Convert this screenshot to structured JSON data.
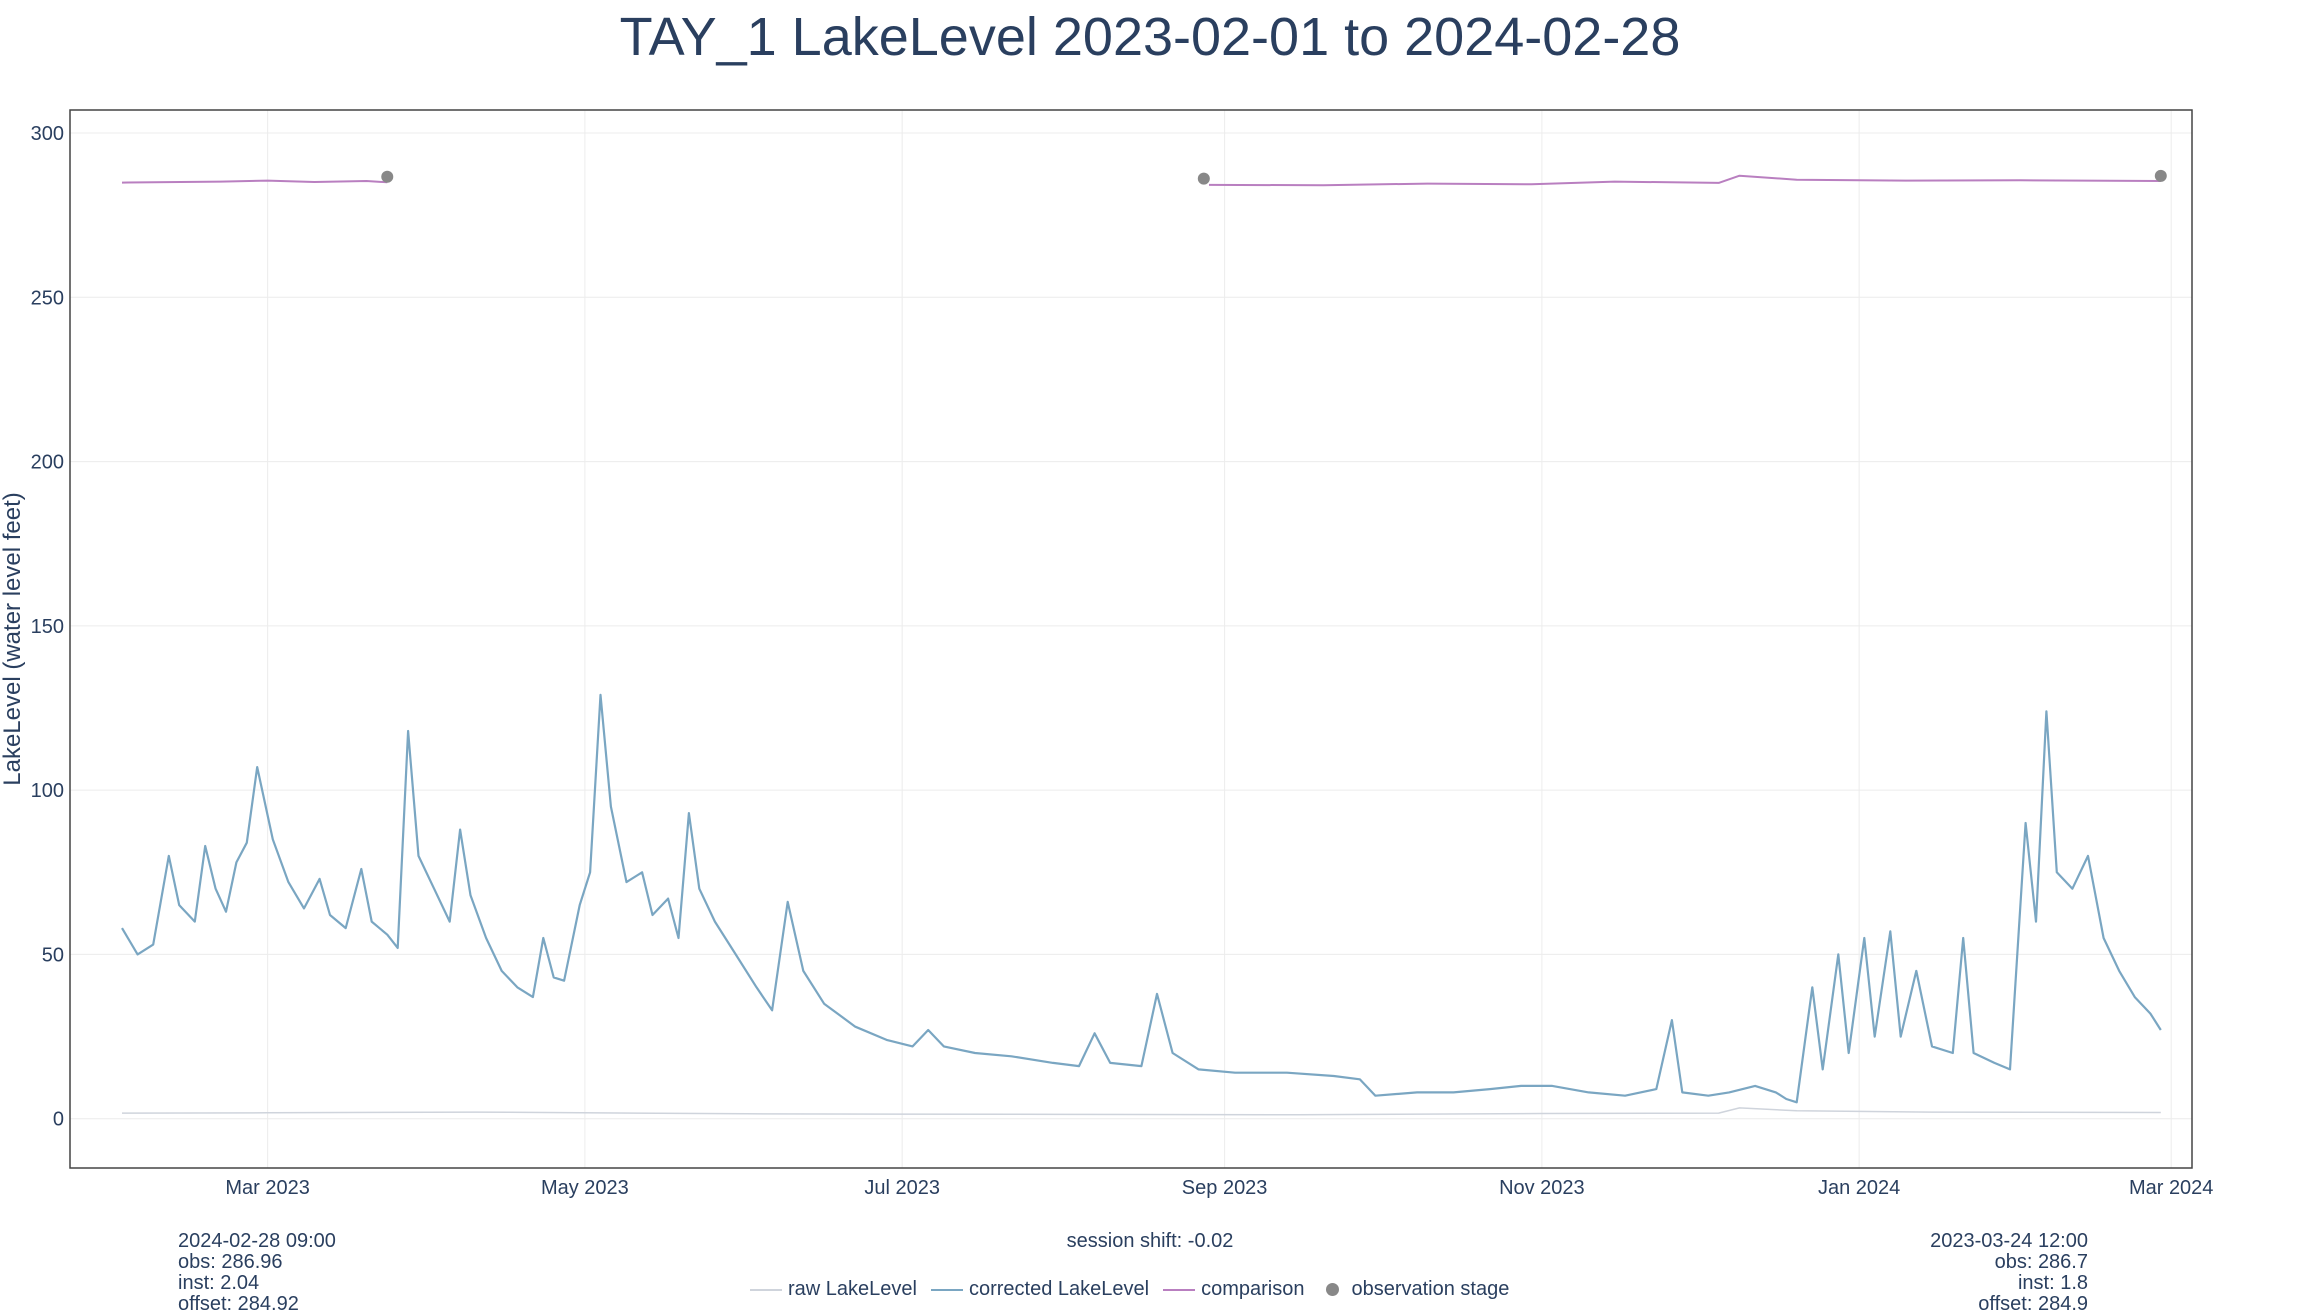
{
  "chart_data": {
    "type": "line",
    "title": "TAY_1 LakeLevel 2023-02-01 to 2024-02-28",
    "xlabel": "",
    "ylabel": "LakeLevel (water level feet)",
    "x_range": [
      "2023-01-22",
      "2024-03-05"
    ],
    "ylim": [
      -15,
      307
    ],
    "y_ticks": [
      0,
      50,
      100,
      150,
      200,
      250,
      300
    ],
    "x_ticks": [
      {
        "date": "2023-03-01",
        "label": "Mar 2023"
      },
      {
        "date": "2023-05-01",
        "label": "May 2023"
      },
      {
        "date": "2023-07-01",
        "label": "Jul 2023"
      },
      {
        "date": "2023-09-01",
        "label": "Sep 2023"
      },
      {
        "date": "2023-11-01",
        "label": "Nov 2023"
      },
      {
        "date": "2024-01-01",
        "label": "Jan 2024"
      },
      {
        "date": "2024-03-01",
        "label": "Mar 2024"
      }
    ],
    "grid": true,
    "legend_position": "bottom-center",
    "series": [
      {
        "name": "raw LakeLevel",
        "kind": "line",
        "color": "#cfd4dc",
        "points": [
          [
            "2023-02-01",
            1.7
          ],
          [
            "2023-03-01",
            1.8
          ],
          [
            "2023-04-10",
            2.0
          ],
          [
            "2023-06-01",
            1.5
          ],
          [
            "2023-08-01",
            1.3
          ],
          [
            "2023-09-15",
            1.2
          ],
          [
            "2023-11-01",
            1.6
          ],
          [
            "2023-12-05",
            1.7
          ],
          [
            "2023-12-09",
            3.3
          ],
          [
            "2023-12-20",
            2.4
          ],
          [
            "2024-01-15",
            2.0
          ],
          [
            "2024-02-28",
            1.9
          ]
        ]
      },
      {
        "name": "corrected LakeLevel",
        "kind": "line",
        "color": "#7aa6c2",
        "points": [
          [
            "2023-02-01",
            58
          ],
          [
            "2023-02-04",
            50
          ],
          [
            "2023-02-07",
            53
          ],
          [
            "2023-02-10",
            80
          ],
          [
            "2023-02-12",
            65
          ],
          [
            "2023-02-15",
            60
          ],
          [
            "2023-02-17",
            83
          ],
          [
            "2023-02-19",
            70
          ],
          [
            "2023-02-21",
            63
          ],
          [
            "2023-02-23",
            78
          ],
          [
            "2023-02-25",
            84
          ],
          [
            "2023-02-27",
            107
          ],
          [
            "2023-03-02",
            85
          ],
          [
            "2023-03-05",
            72
          ],
          [
            "2023-03-08",
            64
          ],
          [
            "2023-03-11",
            73
          ],
          [
            "2023-03-13",
            62
          ],
          [
            "2023-03-16",
            58
          ],
          [
            "2023-03-19",
            76
          ],
          [
            "2023-03-21",
            60
          ],
          [
            "2023-03-24",
            56
          ],
          [
            "2023-03-26",
            52
          ],
          [
            "2023-03-28",
            118
          ],
          [
            "2023-03-30",
            80
          ],
          [
            "2023-04-02",
            70
          ],
          [
            "2023-04-05",
            60
          ],
          [
            "2023-04-07",
            88
          ],
          [
            "2023-04-09",
            68
          ],
          [
            "2023-04-12",
            55
          ],
          [
            "2023-04-15",
            45
          ],
          [
            "2023-04-18",
            40
          ],
          [
            "2023-04-21",
            37
          ],
          [
            "2023-04-23",
            55
          ],
          [
            "2023-04-25",
            43
          ],
          [
            "2023-04-27",
            42
          ],
          [
            "2023-04-30",
            65
          ],
          [
            "2023-05-02",
            75
          ],
          [
            "2023-05-04",
            129
          ],
          [
            "2023-05-06",
            95
          ],
          [
            "2023-05-09",
            72
          ],
          [
            "2023-05-12",
            75
          ],
          [
            "2023-05-14",
            62
          ],
          [
            "2023-05-17",
            67
          ],
          [
            "2023-05-19",
            55
          ],
          [
            "2023-05-21",
            93
          ],
          [
            "2023-05-23",
            70
          ],
          [
            "2023-05-26",
            60
          ],
          [
            "2023-05-30",
            50
          ],
          [
            "2023-06-03",
            40
          ],
          [
            "2023-06-06",
            33
          ],
          [
            "2023-06-09",
            66
          ],
          [
            "2023-06-12",
            45
          ],
          [
            "2023-06-16",
            35
          ],
          [
            "2023-06-22",
            28
          ],
          [
            "2023-06-28",
            24
          ],
          [
            "2023-07-03",
            22
          ],
          [
            "2023-07-06",
            27
          ],
          [
            "2023-07-09",
            22
          ],
          [
            "2023-07-15",
            20
          ],
          [
            "2023-07-22",
            19
          ],
          [
            "2023-07-30",
            17
          ],
          [
            "2023-08-04",
            16
          ],
          [
            "2023-08-07",
            26
          ],
          [
            "2023-08-10",
            17
          ],
          [
            "2023-08-16",
            16
          ],
          [
            "2023-08-19",
            38
          ],
          [
            "2023-08-22",
            20
          ],
          [
            "2023-08-27",
            15
          ],
          [
            "2023-09-03",
            14
          ],
          [
            "2023-09-13",
            14
          ],
          [
            "2023-09-22",
            13
          ],
          [
            "2023-09-27",
            12
          ],
          [
            "2023-09-30",
            7
          ],
          [
            "2023-10-08",
            8
          ],
          [
            "2023-10-15",
            8
          ],
          [
            "2023-10-22",
            9
          ],
          [
            "2023-10-28",
            10
          ],
          [
            "2023-11-03",
            10
          ],
          [
            "2023-11-10",
            8
          ],
          [
            "2023-11-17",
            7
          ],
          [
            "2023-11-23",
            9
          ],
          [
            "2023-11-26",
            30
          ],
          [
            "2023-11-28",
            8
          ],
          [
            "2023-12-03",
            7
          ],
          [
            "2023-12-07",
            8
          ],
          [
            "2023-12-12",
            10
          ],
          [
            "2023-12-16",
            8
          ],
          [
            "2023-12-18",
            6
          ],
          [
            "2023-12-20",
            5
          ],
          [
            "2023-12-23",
            40
          ],
          [
            "2023-12-25",
            15
          ],
          [
            "2023-12-28",
            50
          ],
          [
            "2023-12-30",
            20
          ],
          [
            "2024-01-02",
            55
          ],
          [
            "2024-01-04",
            25
          ],
          [
            "2024-01-07",
            57
          ],
          [
            "2024-01-09",
            25
          ],
          [
            "2024-01-12",
            45
          ],
          [
            "2024-01-15",
            22
          ],
          [
            "2024-01-19",
            20
          ],
          [
            "2024-01-21",
            55
          ],
          [
            "2024-01-23",
            20
          ],
          [
            "2024-01-27",
            17
          ],
          [
            "2024-01-30",
            15
          ],
          [
            "2024-02-02",
            90
          ],
          [
            "2024-02-04",
            60
          ],
          [
            "2024-02-06",
            124
          ],
          [
            "2024-02-08",
            75
          ],
          [
            "2024-02-11",
            70
          ],
          [
            "2024-02-14",
            80
          ],
          [
            "2024-02-17",
            55
          ],
          [
            "2024-02-20",
            45
          ],
          [
            "2024-02-23",
            37
          ],
          [
            "2024-02-26",
            32
          ],
          [
            "2024-02-28",
            27
          ]
        ]
      },
      {
        "name": "comparison",
        "kind": "line",
        "color": "#b97fc0",
        "segments": [
          [
            [
              "2023-02-01",
              284.9
            ],
            [
              "2023-02-20",
              285.2
            ],
            [
              "2023-03-01",
              285.5
            ],
            [
              "2023-03-10",
              285.1
            ],
            [
              "2023-03-20",
              285.4
            ],
            [
              "2023-03-24",
              285.0
            ]
          ],
          [
            [
              "2023-08-29",
              284.2
            ],
            [
              "2023-09-20",
              284.1
            ],
            [
              "2023-10-10",
              284.6
            ],
            [
              "2023-10-30",
              284.4
            ],
            [
              "2023-11-15",
              285.2
            ],
            [
              "2023-12-05",
              284.8
            ],
            [
              "2023-12-09",
              287.0
            ],
            [
              "2023-12-20",
              285.8
            ],
            [
              "2024-01-10",
              285.5
            ],
            [
              "2024-02-01",
              285.6
            ],
            [
              "2024-02-28",
              285.4
            ]
          ]
        ]
      },
      {
        "name": "observation stage",
        "kind": "scatter",
        "color": "#888888",
        "points": [
          [
            "2023-03-24",
            286.7
          ],
          [
            "2023-08-28",
            286.1
          ],
          [
            "2024-02-28",
            286.96
          ]
        ]
      }
    ]
  },
  "annotations": {
    "left_lines": [
      "2024-02-28 09:00",
      "obs: 286.96",
      "inst: 2.04",
      "offset: 284.92"
    ],
    "right_lines": [
      "2023-03-24 12:00",
      "obs: 286.7",
      "inst: 1.8",
      "offset: 284.9"
    ],
    "session_shift": "session shift: -0.02"
  }
}
